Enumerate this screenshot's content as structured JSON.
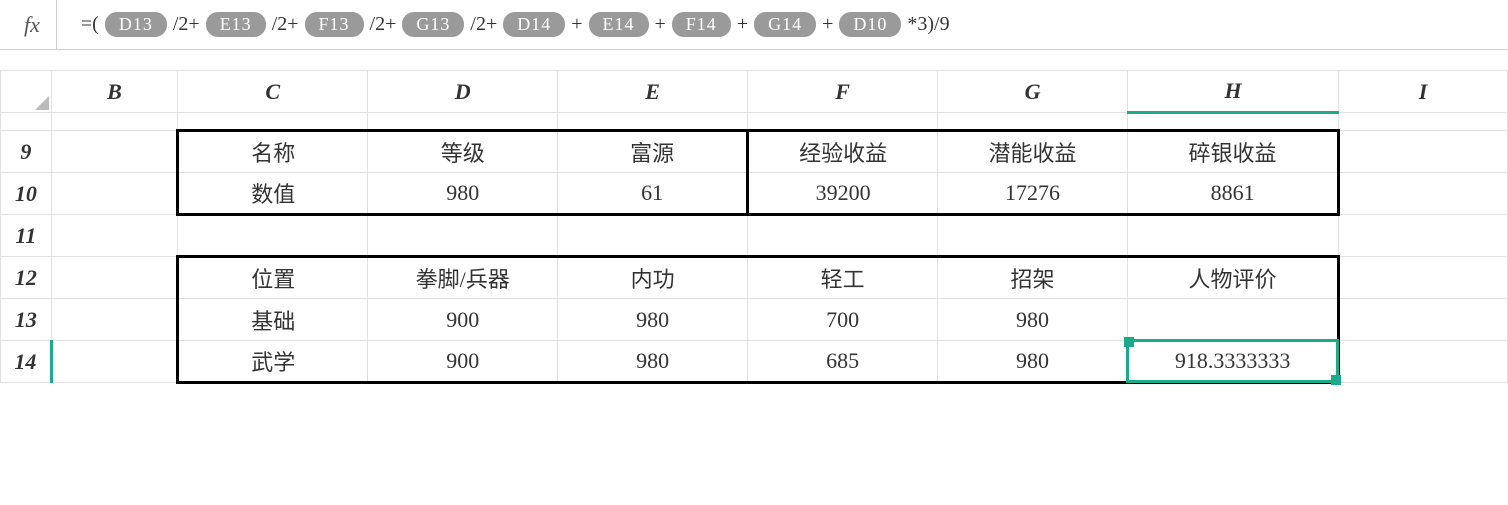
{
  "formula_bar": {
    "fx": "fx",
    "prefix": "=(",
    "refs": [
      "D13",
      "E13",
      "F13",
      "G13",
      "D14",
      "E14",
      "F14",
      "G14",
      "D10"
    ],
    "ops": [
      "/2+",
      "/2+",
      "/2+",
      "/2+",
      "+",
      "+",
      "+",
      "+",
      "*3)/9"
    ]
  },
  "columns": [
    "B",
    "C",
    "D",
    "E",
    "F",
    "G",
    "H",
    "I"
  ],
  "rows": [
    "9",
    "10",
    "11",
    "12",
    "13",
    "14"
  ],
  "table1": {
    "header": {
      "C": "名称",
      "D": "等级",
      "E": "富源",
      "F": "经验收益",
      "G": "潜能收益",
      "H": "碎银收益"
    },
    "row10": {
      "C": "数值",
      "D": "980",
      "E": "61",
      "F": "39200",
      "G": "17276",
      "H": "8861"
    }
  },
  "table2": {
    "header": {
      "C": "位置",
      "D": "拳脚/兵器",
      "E": "内功",
      "F": "轻工",
      "G": "招架",
      "H": "人物评价"
    },
    "row13": {
      "C": "基础",
      "D": "900",
      "E": "980",
      "F": "700",
      "G": "980",
      "H": ""
    },
    "row14": {
      "C": "武学",
      "D": "900",
      "E": "980",
      "F": "685",
      "G": "980",
      "H": "918.3333333"
    }
  },
  "selected_cell": "H14",
  "colors": {
    "selection": "#1aab8a",
    "cell_ref_bg": "#9a9a9a",
    "grid": "#e0e0e0",
    "border_thick": "#000000"
  }
}
